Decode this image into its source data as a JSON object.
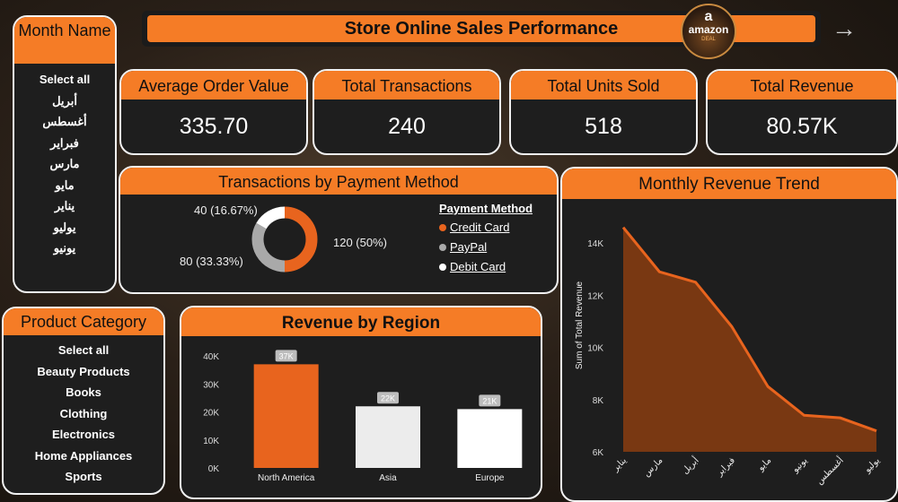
{
  "header": {
    "title": "Store Online Sales Performance",
    "logo": {
      "brand": "amazon",
      "line2": "amazon",
      "line3": "DEAL"
    },
    "arrow_icon": "arrow-right-icon"
  },
  "month_slicer": {
    "title": "Month Name",
    "items": [
      "Select all",
      "أبريل",
      "أغسطس",
      "فبراير",
      "مارس",
      "مايو",
      "يناير",
      "يوليو",
      "يونيو"
    ]
  },
  "category_slicer": {
    "title": "Product Category",
    "items": [
      "Select all",
      "Beauty Products",
      "Books",
      "Clothing",
      "Electronics",
      "Home Appliances",
      "Sports"
    ]
  },
  "kpis": {
    "aov": {
      "label": "Average Order Value",
      "value": "335.70"
    },
    "transactions": {
      "label": "Total Transactions",
      "value": "240"
    },
    "units": {
      "label": "Total Units Sold",
      "value": "518"
    },
    "revenue": {
      "label": "Total Revenue",
      "value": "80.57K"
    }
  },
  "payment": {
    "title": "Transactions by Payment Method",
    "legend_title": "Payment Method",
    "labels": {
      "credit": "120 (50%)",
      "paypal": "80 (33.33%)",
      "debit": "40 (16.67%)"
    },
    "legend": [
      "Credit Card",
      "PayPal",
      "Debit Card"
    ]
  },
  "region": {
    "title": "Revenue by Region"
  },
  "trend": {
    "title": "Monthly Revenue Trend"
  },
  "colors": {
    "accent": "#f57c26",
    "credit": "#e8641e",
    "paypal": "#a9a9a9",
    "debit": "#ffffff",
    "area_fill": "#8a3d10",
    "area_line": "#e8641e"
  },
  "chart_data": [
    {
      "type": "pie",
      "title": "Transactions by Payment Method",
      "legend_title": "Payment Method",
      "categories": [
        "Credit Card",
        "PayPal",
        "Debit Card"
      ],
      "values": [
        120,
        80,
        40
      ],
      "data_labels": [
        "120 (50%)",
        "80 (33.33%)",
        "40 (16.67%)"
      ],
      "legend_placement": "right"
    },
    {
      "type": "bar",
      "title": "Revenue by Region",
      "categories": [
        "North America",
        "Asia",
        "Europe"
      ],
      "values": [
        37000,
        22000,
        21000
      ],
      "data_labels": [
        "37K",
        "22K",
        "21K"
      ],
      "colors": [
        "#e8641e",
        "#ececec",
        "#ffffff"
      ],
      "ylim": [
        0,
        40000
      ],
      "yticks": [
        "0K",
        "10K",
        "20K",
        "30K",
        "40K"
      ],
      "ytick_values": [
        0,
        10000,
        20000,
        30000,
        40000
      ]
    },
    {
      "type": "area",
      "title": "Monthly Revenue Trend",
      "ylabel": "Sum of Total Revenue",
      "categories": [
        "يناير",
        "مارس",
        "أبريل",
        "فبراير",
        "مايو",
        "يونيو",
        "أغسطس",
        "يوليو"
      ],
      "values": [
        14600,
        12900,
        12500,
        10800,
        8500,
        7400,
        7300,
        6800
      ],
      "ylim": [
        6000,
        15000
      ],
      "yticks": [
        "6K",
        "8K",
        "10K",
        "12K",
        "14K"
      ],
      "ytick_values": [
        6000,
        8000,
        10000,
        12000,
        14000
      ]
    }
  ]
}
